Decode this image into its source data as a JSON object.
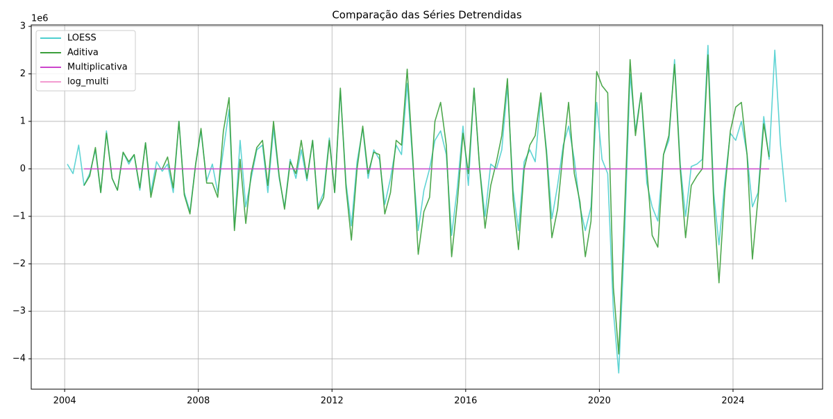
{
  "chart_data": {
    "type": "line",
    "title": "Comparação das Séries Detrendidas",
    "y_offset_label": "1e6",
    "x": [
      2004.08,
      2004.25,
      2004.42,
      2004.58,
      2004.75,
      2004.92,
      2005.08,
      2005.25,
      2005.42,
      2005.58,
      2005.75,
      2005.92,
      2006.08,
      2006.25,
      2006.42,
      2006.58,
      2006.75,
      2006.92,
      2007.08,
      2007.25,
      2007.42,
      2007.58,
      2007.75,
      2007.92,
      2008.08,
      2008.25,
      2008.42,
      2008.58,
      2008.75,
      2008.92,
      2009.08,
      2009.25,
      2009.42,
      2009.58,
      2009.75,
      2009.92,
      2010.08,
      2010.25,
      2010.42,
      2010.58,
      2010.75,
      2010.92,
      2011.08,
      2011.25,
      2011.42,
      2011.58,
      2011.75,
      2011.92,
      2012.08,
      2012.25,
      2012.42,
      2012.58,
      2012.75,
      2012.92,
      2013.08,
      2013.25,
      2013.42,
      2013.58,
      2013.75,
      2013.92,
      2014.08,
      2014.25,
      2014.42,
      2014.58,
      2014.75,
      2014.92,
      2015.08,
      2015.25,
      2015.42,
      2015.58,
      2015.75,
      2015.92,
      2016.08,
      2016.25,
      2016.42,
      2016.58,
      2016.75,
      2016.92,
      2017.08,
      2017.25,
      2017.42,
      2017.58,
      2017.75,
      2017.92,
      2018.08,
      2018.25,
      2018.42,
      2018.58,
      2018.75,
      2018.92,
      2019.08,
      2019.25,
      2019.42,
      2019.58,
      2019.75,
      2019.92,
      2020.08,
      2020.25,
      2020.42,
      2020.58,
      2020.75,
      2020.92,
      2021.08,
      2021.25,
      2021.42,
      2021.58,
      2021.75,
      2021.92,
      2022.08,
      2022.25,
      2022.42,
      2022.58,
      2022.75,
      2022.92,
      2023.08,
      2023.25,
      2023.42,
      2023.58,
      2023.75,
      2023.92,
      2024.08,
      2024.25,
      2024.42,
      2024.58,
      2024.75,
      2024.92,
      2025.08,
      2025.25,
      2025.42,
      2025.58
    ],
    "series": [
      {
        "name": "LOESS",
        "color": "#4ecfcf",
        "values": [
          0.1,
          -0.1,
          0.5,
          -0.35,
          -0.1,
          0.4,
          -0.5,
          0.8,
          -0.2,
          -0.45,
          0.35,
          0.1,
          0.3,
          -0.45,
          0.55,
          -0.5,
          0.15,
          -0.05,
          0.1,
          -0.5,
          1.0,
          -0.5,
          -0.9,
          0.1,
          0.8,
          -0.25,
          0.1,
          -0.5,
          0.4,
          1.25,
          -1.25,
          0.6,
          -0.8,
          -0.2,
          0.4,
          0.5,
          -0.5,
          0.85,
          -0.2,
          -0.8,
          0.2,
          -0.2,
          0.4,
          -0.25,
          0.6,
          -0.8,
          -0.5,
          0.65,
          -0.5,
          1.65,
          -0.3,
          -1.2,
          0.15,
          0.85,
          -0.2,
          0.4,
          0.2,
          -0.75,
          -0.2,
          0.5,
          0.3,
          1.8,
          0.1,
          -1.3,
          -0.45,
          0,
          0.6,
          0.8,
          0.3,
          -1.4,
          -0.4,
          0.9,
          -0.35,
          1.7,
          0,
          -1,
          0.1,
          0,
          0.4,
          1.75,
          -0.45,
          -1.3,
          0.15,
          0.4,
          0.15,
          1.5,
          0.4,
          -1.05,
          -0.35,
          0.5,
          0.9,
          0.2,
          -0.8,
          -1.3,
          -0.8,
          1.4,
          0.2,
          -0.1,
          -3,
          -4.3,
          -1.5,
          2,
          0.8,
          1.6,
          -0.3,
          -0.8,
          -1.1,
          0.3,
          0.6,
          2.3,
          0.1,
          -1,
          0.05,
          0.1,
          0.2,
          2.6,
          -0.5,
          -1.6,
          -0.3,
          0.75,
          0.6,
          1,
          0.3,
          -0.8,
          -0.5,
          1.1,
          0.2,
          2.5,
          0.5,
          -0.7
        ]
      },
      {
        "name": "Aditiva",
        "color": "#3a9e3a",
        "values": [
          null,
          null,
          null,
          -0.35,
          -0.15,
          0.45,
          -0.5,
          0.75,
          -0.2,
          -0.45,
          0.35,
          0.15,
          0.3,
          -0.4,
          0.55,
          -0.6,
          0,
          0,
          0.25,
          -0.4,
          1,
          -0.55,
          -0.95,
          0.1,
          0.85,
          -0.3,
          -0.3,
          -0.6,
          0.8,
          1.5,
          -1.3,
          0.2,
          -1.15,
          -0.1,
          0.45,
          0.6,
          -0.35,
          1,
          -0.15,
          -0.85,
          0.15,
          -0.1,
          0.6,
          -0.2,
          0.6,
          -0.85,
          -0.6,
          0.6,
          -0.5,
          1.7,
          -0.4,
          -1.5,
          0,
          0.9,
          -0.1,
          0.35,
          0.3,
          -0.95,
          -0.5,
          0.6,
          0.5,
          2.1,
          0.2,
          -1.8,
          -0.9,
          -0.6,
          1,
          1.4,
          0.5,
          -1.85,
          -0.7,
          0.75,
          -0.1,
          1.7,
          0,
          -1.25,
          -0.35,
          0.15,
          0.7,
          1.9,
          -0.65,
          -1.7,
          0,
          0.5,
          0.7,
          1.6,
          0.3,
          -1.45,
          -0.85,
          0.4,
          1.4,
          -0.1,
          -0.7,
          -1.85,
          -1.1,
          2.05,
          1.75,
          1.6,
          -2.5,
          -3.9,
          -1,
          2.3,
          0.7,
          1.6,
          0,
          -1.4,
          -1.65,
          0.3,
          0.7,
          2.2,
          0,
          -1.45,
          -0.35,
          -0.15,
          0,
          2.4,
          -0.7,
          -2.4,
          -0.5,
          0.8,
          1.3,
          1.4,
          0.3,
          -1.9,
          -0.6,
          0.95,
          0.25,
          null,
          null,
          null
        ]
      },
      {
        "name": "Multiplicativa",
        "color": "#cc44cc",
        "values": [
          null,
          null,
          null,
          0,
          0,
          0,
          0,
          0,
          0,
          0,
          0,
          0,
          0,
          0,
          0,
          0,
          0,
          0,
          0,
          0,
          0,
          0,
          0,
          0,
          0,
          0,
          0,
          0,
          0,
          0,
          0,
          0,
          0,
          0,
          0,
          0,
          0,
          0,
          0,
          0,
          0,
          0,
          0,
          0,
          0,
          0,
          0,
          0,
          0,
          0,
          0,
          0,
          0,
          0,
          0,
          0,
          0,
          0,
          0,
          0,
          0,
          0,
          0,
          0,
          0,
          0,
          0,
          0,
          0,
          0,
          0,
          0,
          0,
          0,
          0,
          0,
          0,
          0,
          0,
          0,
          0,
          0,
          0,
          0,
          0,
          0,
          0,
          0,
          0,
          0,
          0,
          0,
          0,
          0,
          0,
          0,
          0,
          0,
          0,
          0,
          0,
          0,
          0,
          0,
          0,
          0,
          0,
          0,
          0,
          0,
          0,
          0,
          0,
          0,
          0,
          0,
          0,
          0,
          0,
          0,
          0,
          0,
          0,
          0,
          0,
          0,
          0,
          null,
          null,
          null
        ]
      },
      {
        "name": "log_multi",
        "color": "#f39ad0",
        "values": [
          null,
          null,
          null,
          null,
          null,
          null,
          null,
          null,
          null,
          null,
          null,
          null,
          null,
          null,
          null,
          null,
          null,
          null,
          null,
          null,
          null,
          null,
          null,
          null,
          null,
          null,
          null,
          null,
          null,
          null,
          null,
          null,
          null,
          null,
          null,
          null,
          null,
          null,
          null,
          null,
          null,
          null,
          null,
          null,
          null,
          null,
          null,
          null,
          null,
          null,
          null,
          null,
          null,
          null,
          null,
          null,
          null,
          null,
          null,
          null,
          null,
          null,
          null,
          null,
          null,
          null,
          null,
          null,
          null,
          null,
          null,
          null,
          null,
          null,
          null,
          null,
          null,
          null,
          null,
          null,
          null,
          null,
          null,
          null,
          null,
          null,
          null,
          null,
          null,
          null,
          null,
          null,
          null,
          null,
          null,
          null,
          null,
          null,
          null,
          null,
          null,
          null,
          null,
          null,
          null,
          null,
          null,
          null,
          null,
          null,
          null,
          null,
          null,
          null,
          null,
          null,
          null,
          null,
          null,
          null,
          null,
          null,
          null,
          null,
          null,
          null,
          null,
          null,
          null,
          null
        ]
      }
    ],
    "xlim": [
      2003.0,
      2026.68
    ],
    "xticks": [
      2004,
      2008,
      2012,
      2016,
      2020,
      2024
    ],
    "ylim": [
      -4.64,
      3.03
    ],
    "yticks": [
      {
        "value": -4,
        "label": "−4"
      },
      {
        "value": -3,
        "label": "−3"
      },
      {
        "value": -2,
        "label": "−2"
      },
      {
        "value": -1,
        "label": "−1"
      },
      0,
      1,
      2,
      3
    ],
    "grid": true,
    "legend": "upper-left"
  }
}
